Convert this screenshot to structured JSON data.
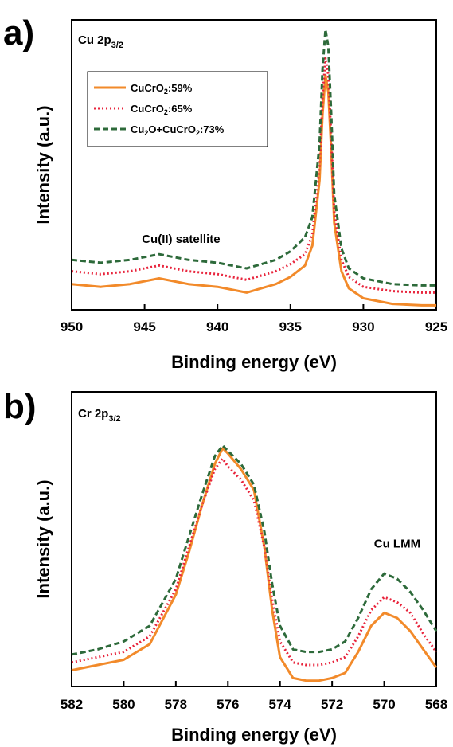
{
  "colors": {
    "CuCrO2_59": "#f28a2a",
    "CuCrO2_65": "#e8243c",
    "Cu2O_CuCrO2_73": "#2d6a3a"
  },
  "chart_data": [
    {
      "panel": "a)",
      "type": "line",
      "title": "Cu 2p3/2",
      "xlabel": "Binding energy (eV)",
      "ylabel": "Intensity (a.u.)",
      "xlim": [
        950,
        925
      ],
      "x_reversed": true,
      "ylim": [
        0,
        100
      ],
      "y_ticks_shown": false,
      "x_ticks": [
        950,
        945,
        940,
        935,
        930,
        925
      ],
      "annotations": [
        {
          "text": "Cu(II) satellite",
          "x": 942.5,
          "y": 23
        }
      ],
      "legend": {
        "position": "top-left",
        "entries": [
          "CuCrO2:59%",
          "CuCrO2:65%",
          "Cu2O+CuCrO2:73%"
        ]
      },
      "series": [
        {
          "name": "CuCrO2:59%",
          "color_key": "CuCrO2_59",
          "style": "solid",
          "x": [
            950,
            948,
            946,
            944,
            942,
            940,
            938,
            936,
            935,
            934,
            933.5,
            933,
            932.8,
            932.6,
            932.4,
            932.2,
            932,
            931.5,
            931,
            930,
            928,
            926,
            925
          ],
          "y": [
            8.5,
            7.5,
            8.5,
            10.5,
            8.5,
            7.5,
            5.5,
            8.5,
            11,
            15,
            22,
            45,
            68,
            82,
            76,
            55,
            30,
            13,
            7,
            3.5,
            1.5,
            1,
            1
          ]
        },
        {
          "name": "CuCrO2:65%",
          "color_key": "CuCrO2_65",
          "style": "dotted",
          "x": [
            950,
            948,
            946,
            944,
            942,
            940,
            938,
            936,
            935,
            934,
            933.5,
            933,
            932.8,
            932.6,
            932.4,
            932.2,
            932,
            931.5,
            931,
            930,
            928,
            926,
            925
          ],
          "y": [
            13,
            12,
            13,
            15,
            13,
            12,
            10,
            13,
            15.5,
            19,
            26,
            50,
            74,
            88,
            82,
            60,
            34,
            17,
            11,
            7.5,
            6,
            5.5,
            5.5
          ]
        },
        {
          "name": "Cu2O+CuCrO2:73%",
          "color_key": "Cu2O_CuCrO2_73",
          "style": "dashed",
          "x": [
            950,
            948,
            946,
            944,
            942,
            940,
            938,
            936,
            935,
            934,
            933.5,
            933,
            932.8,
            932.6,
            932.4,
            932.2,
            932,
            931.5,
            931,
            930,
            928,
            926,
            925
          ],
          "y": [
            17,
            16,
            17,
            19,
            17,
            16,
            14,
            17,
            20,
            25,
            32,
            58,
            84,
            98,
            92,
            68,
            40,
            21,
            14,
            10.5,
            8.5,
            8,
            8
          ]
        }
      ]
    },
    {
      "panel": "b)",
      "type": "line",
      "title": "Cr 2p3/2",
      "xlabel": "Binding energy (eV)",
      "ylabel": "Intensity (a.u.)",
      "xlim": [
        582,
        568
      ],
      "x_reversed": true,
      "ylim": [
        0,
        100
      ],
      "y_ticks_shown": false,
      "x_ticks": [
        582,
        580,
        578,
        576,
        574,
        572,
        570,
        568
      ],
      "annotations": [
        {
          "text": "Cu LMM",
          "x": 569.5,
          "y": 52
        }
      ],
      "series": [
        {
          "name": "CuCrO2:59%",
          "color_key": "CuCrO2_59",
          "style": "solid",
          "x": [
            582,
            581,
            580,
            579,
            578,
            577.5,
            577,
            576.5,
            576.2,
            576,
            575.5,
            575,
            574.6,
            574.3,
            574,
            573.5,
            573,
            572.5,
            572,
            571.5,
            571,
            570.5,
            570,
            569.5,
            569,
            568.5,
            568
          ],
          "y": [
            5,
            7,
            9,
            15,
            34,
            50,
            68,
            84,
            90,
            88,
            82,
            74,
            52,
            28,
            10,
            2,
            1,
            1,
            2,
            4,
            12,
            22,
            27,
            25,
            20,
            13,
            6
          ]
        },
        {
          "name": "CuCrO2:65%",
          "color_key": "CuCrO2_65",
          "style": "dotted",
          "x": [
            582,
            581,
            580,
            579,
            578,
            577.5,
            577,
            576.5,
            576.2,
            576,
            575.5,
            575,
            574.6,
            574.3,
            574,
            573.5,
            573,
            572.5,
            572,
            571.5,
            571,
            570.5,
            570,
            569.5,
            569,
            568.5,
            568
          ],
          "y": [
            8,
            10,
            12,
            18,
            36,
            52,
            68,
            82,
            86,
            83,
            78,
            70,
            52,
            32,
            16,
            8,
            7,
            7,
            8,
            10,
            18,
            28,
            33,
            31,
            27,
            19,
            12
          ]
        },
        {
          "name": "Cu2O+CuCrO2:73%",
          "color_key": "Cu2O_CuCrO2_73",
          "style": "dashed",
          "x": [
            582,
            581,
            580,
            579,
            578,
            577.5,
            577,
            576.5,
            576.2,
            576,
            575.5,
            575,
            574.6,
            574.3,
            574,
            573.5,
            573,
            572.5,
            572,
            571.5,
            571,
            570.5,
            570,
            569.5,
            569,
            568.5,
            568
          ],
          "y": [
            11,
            13,
            16,
            22,
            40,
            56,
            72,
            87,
            91,
            89,
            84,
            76,
            58,
            38,
            22,
            13,
            12,
            12,
            13,
            16,
            25,
            36,
            42,
            40,
            35,
            28,
            20
          ]
        }
      ]
    }
  ]
}
